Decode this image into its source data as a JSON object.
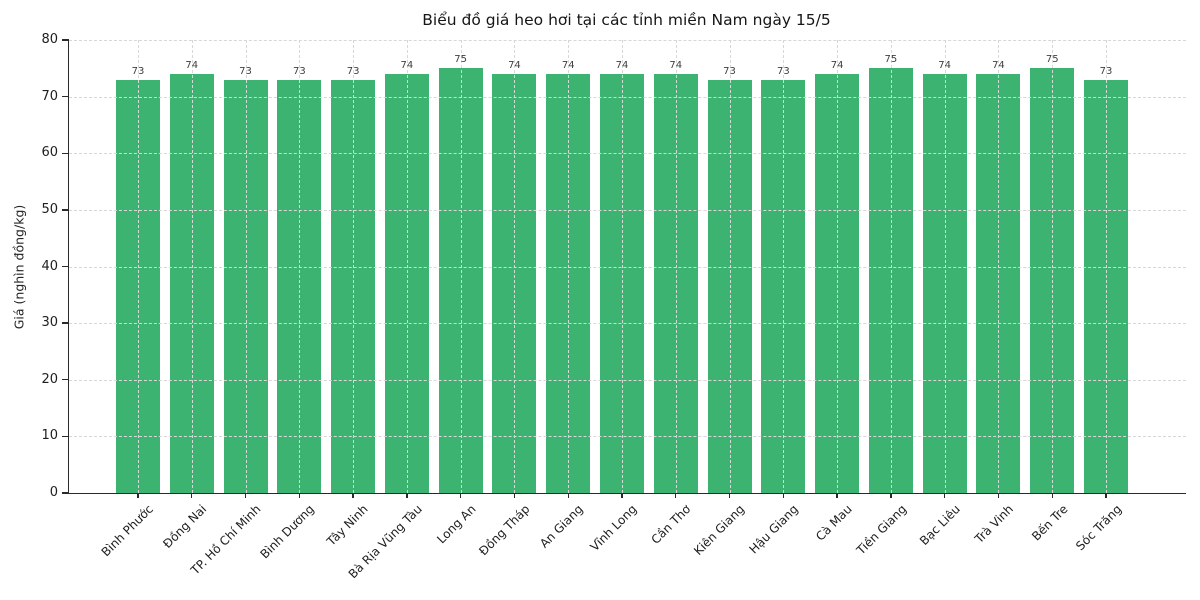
{
  "chart_data": {
    "type": "bar",
    "title": "Biểu đồ giá heo hơi tại các tỉnh miền Nam ngày 15/5",
    "xlabel": "",
    "ylabel": "Giá (nghìn đồng/kg)",
    "categories": [
      "Bình Phước",
      "Đồng Nai",
      "TP. Hồ Chí Minh",
      "Bình Dương",
      "Tây Ninh",
      "Bà Rịa Vũng Tàu",
      "Long An",
      "Đồng Tháp",
      "An Giang",
      "Vĩnh Long",
      "Cần Thơ",
      "Kiên Giang",
      "Hậu Giang",
      "Cà Mau",
      "Tiền Giang",
      "Bạc Liêu",
      "Trà Vinh",
      "Bến Tre",
      "Sóc Trăng"
    ],
    "values": [
      73,
      74,
      73,
      73,
      73,
      74,
      75,
      74,
      74,
      74,
      74,
      73,
      73,
      74,
      75,
      74,
      74,
      75,
      73
    ],
    "ylim": [
      0,
      80
    ],
    "yticks": [
      0,
      10,
      20,
      30,
      40,
      50,
      60,
      70,
      80
    ],
    "bar_color": "#3cb371",
    "grid": true,
    "grid_style": "dashed",
    "xtick_rotation": 45,
    "value_labels": true,
    "legend": "none"
  }
}
